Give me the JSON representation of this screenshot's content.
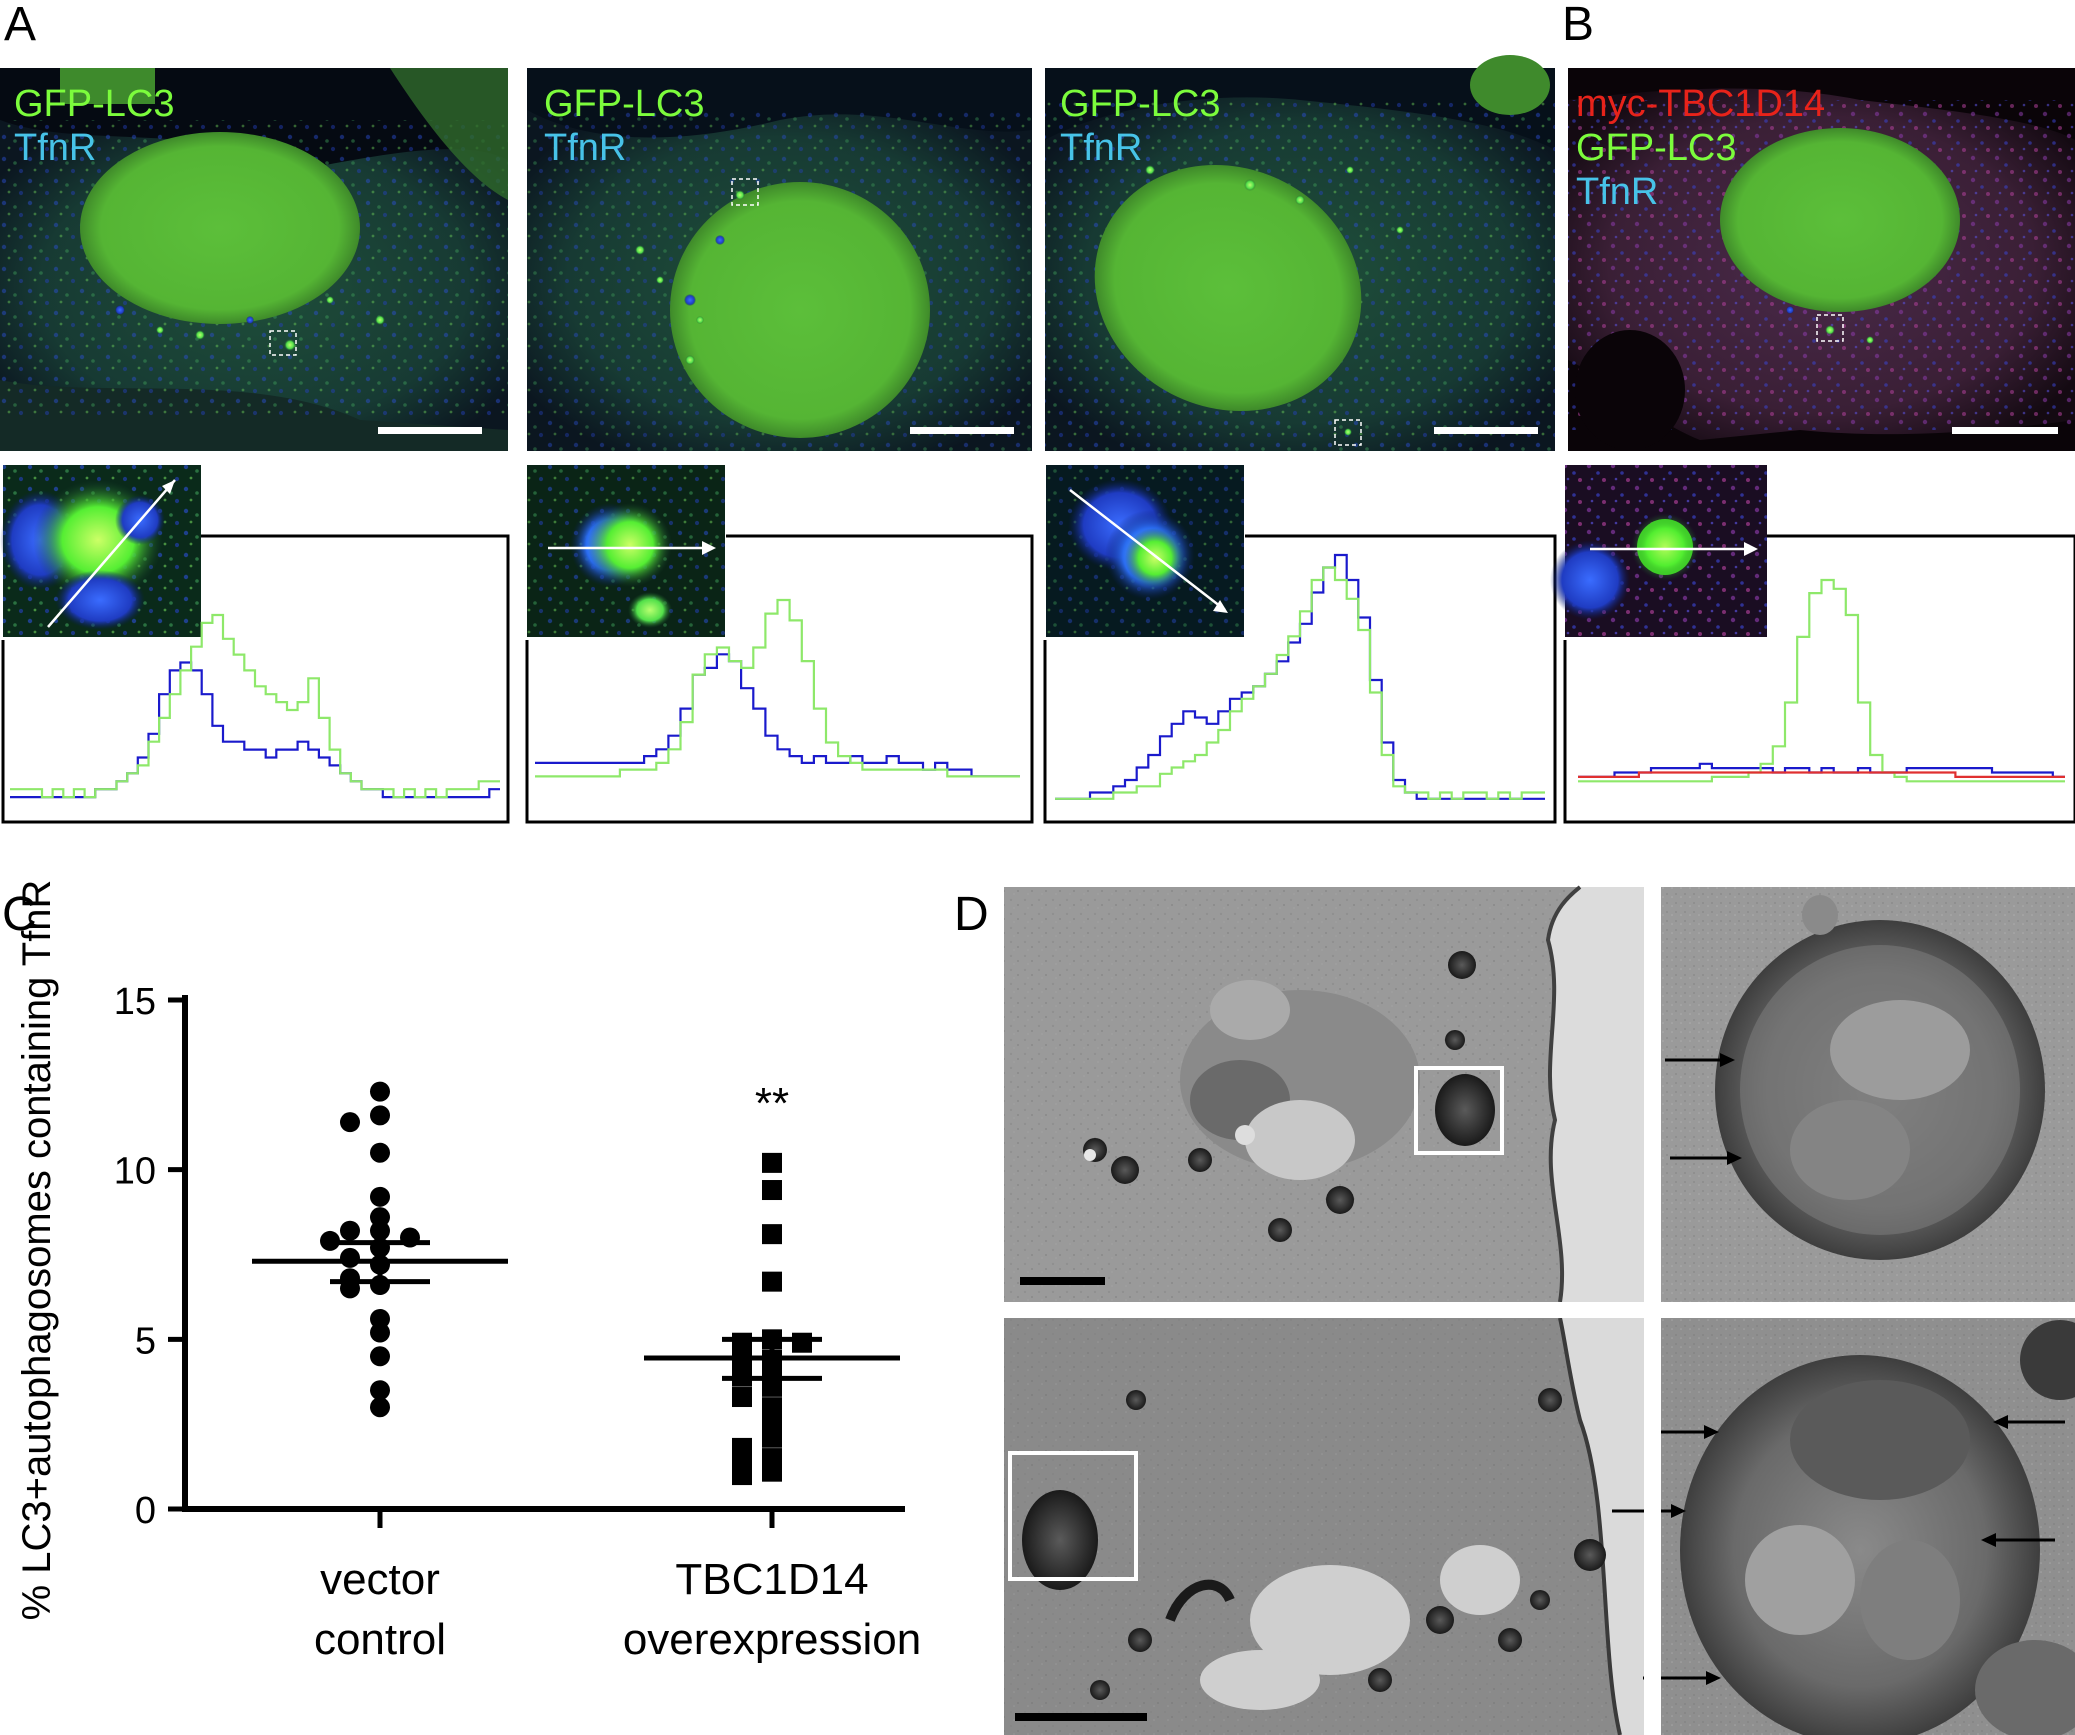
{
  "panels": {
    "A": {
      "letter": "A",
      "images": [
        {
          "labels": [
            "GFP-LC3",
            "TfnR"
          ]
        },
        {
          "labels": [
            "GFP-LC3",
            "TfnR"
          ]
        },
        {
          "labels": [
            "GFP-LC3",
            "TfnR"
          ]
        }
      ]
    },
    "B": {
      "letter": "B",
      "labels": [
        "myc-TBC1D14",
        "GFP-LC3",
        "TfnR"
      ]
    },
    "C": {
      "letter": "C"
    },
    "D": {
      "letter": "D"
    }
  },
  "colors": {
    "gfp": "#7CFC3C",
    "tfnr": "#47C3E8",
    "myc": "#E8231A",
    "blue_trace": "#1a1acc",
    "green_trace": "#8ee86a",
    "red_trace": "#e03030"
  },
  "chart_data": [
    {
      "type": "line",
      "panel": "A-1",
      "series": [
        {
          "color": "blue",
          "values": [
            1,
            1,
            1,
            1,
            1,
            1,
            1,
            1,
            2,
            2,
            3,
            4,
            6,
            9,
            14,
            17,
            18,
            17,
            14,
            10,
            8,
            8,
            7,
            7,
            6,
            7,
            7,
            8,
            7,
            6,
            5,
            4,
            3,
            2,
            2,
            1,
            1,
            1,
            1,
            1,
            1,
            1,
            1,
            1,
            1,
            2
          ]
        },
        {
          "color": "green",
          "values": [
            2,
            2,
            2,
            1,
            2,
            1,
            2,
            1,
            2,
            2,
            3,
            4,
            5,
            8,
            11,
            14,
            17,
            20,
            23,
            24,
            21,
            19,
            17,
            15,
            14,
            13,
            12,
            13,
            16,
            11,
            7,
            4,
            3,
            2,
            2,
            2,
            1,
            2,
            1,
            2,
            1,
            2,
            2,
            2,
            3,
            3
          ]
        }
      ]
    },
    {
      "type": "line",
      "panel": "A-2",
      "series": [
        {
          "color": "blue",
          "values": [
            4,
            4,
            4,
            4,
            4,
            4,
            4,
            4,
            4,
            5,
            6,
            8,
            12,
            17,
            18,
            20,
            19,
            15,
            12,
            8,
            6,
            5,
            4,
            5,
            4,
            4,
            5,
            4,
            4,
            5,
            4,
            4,
            3,
            4,
            3,
            3,
            2,
            2,
            2,
            2
          ]
        },
        {
          "color": "green",
          "values": [
            2,
            2,
            2,
            2,
            2,
            2,
            2,
            3,
            3,
            3,
            4,
            6,
            10,
            17,
            20,
            21,
            19,
            18,
            21,
            26,
            28,
            25,
            19,
            12,
            7,
            5,
            4,
            3,
            3,
            3,
            3,
            3,
            3,
            3,
            2,
            2,
            2,
            2,
            2,
            2
          ]
        }
      ]
    },
    {
      "type": "line",
      "panel": "A-3",
      "series": [
        {
          "color": "blue",
          "values": [
            1,
            1,
            1,
            2,
            2,
            3,
            4,
            6,
            8,
            11,
            13,
            15,
            14,
            13,
            15,
            17,
            18,
            19,
            21,
            23,
            26,
            29,
            34,
            38,
            40,
            36,
            30,
            20,
            10,
            4,
            2,
            1,
            1,
            1,
            1,
            1,
            1,
            1,
            1,
            1,
            1,
            1
          ]
        },
        {
          "color": "green",
          "values": [
            1,
            1,
            1,
            1,
            1,
            2,
            2,
            3,
            3,
            5,
            6,
            7,
            8,
            10,
            12,
            15,
            17,
            19,
            21,
            24,
            27,
            31,
            36,
            38,
            36,
            33,
            28,
            18,
            8,
            3,
            2,
            2,
            1,
            2,
            1,
            2,
            2,
            1,
            2,
            1,
            2,
            2
          ]
        }
      ]
    },
    {
      "type": "line",
      "panel": "B",
      "series": [
        {
          "color": "blue",
          "values": [
            3,
            3,
            3,
            4,
            4,
            4,
            5,
            5,
            5,
            5,
            6,
            5,
            5,
            5,
            5,
            5,
            4,
            5,
            5,
            4,
            5,
            4,
            4,
            5,
            4,
            4,
            4,
            5,
            5,
            5,
            5,
            5,
            5,
            5,
            4,
            4,
            4,
            4,
            4,
            3
          ]
        },
        {
          "color": "green",
          "values": [
            2,
            2,
            2,
            2,
            2,
            2,
            2,
            2,
            2,
            2,
            2,
            3,
            3,
            3,
            4,
            6,
            10,
            20,
            35,
            45,
            48,
            46,
            40,
            20,
            8,
            4,
            3,
            2,
            2,
            2,
            2,
            2,
            2,
            2,
            2,
            2,
            2,
            2,
            2,
            2
          ]
        },
        {
          "color": "red",
          "values": [
            3,
            3,
            3,
            3,
            3,
            4,
            4,
            4,
            4,
            4,
            4,
            4,
            4,
            4,
            4,
            4,
            4,
            4,
            4,
            4,
            4,
            4,
            4,
            4,
            4,
            4,
            4,
            4,
            4,
            4,
            4,
            3,
            3,
            3,
            3,
            3,
            3,
            3,
            3,
            3
          ]
        }
      ]
    },
    {
      "type": "scatter",
      "panel": "C",
      "ylabel": "% LC3+autophagosomes containing TfnR",
      "ylim": [
        0,
        15
      ],
      "yticks": [
        "0",
        "5",
        "10",
        "15"
      ],
      "categories": [
        "vector control",
        "TBC1D14 overexpression"
      ],
      "significance": "**",
      "series": [
        {
          "category": "vector control",
          "marker": "circle",
          "mean": 7.3,
          "sem_low": 6.7,
          "sem_high": 7.85,
          "values": [
            12.3,
            11.6,
            11.4,
            10.5,
            9.2,
            8.6,
            8.2,
            8.2,
            8.0,
            7.9,
            7.7,
            7.4,
            7.2,
            6.8,
            6.6,
            6.5,
            5.6,
            5.2,
            4.5,
            3.5,
            3.0
          ]
        },
        {
          "category": "TBC1D14 overexpression",
          "marker": "square",
          "mean": 4.45,
          "sem_low": 3.85,
          "sem_high": 5.0,
          "values": [
            10.2,
            9.4,
            8.1,
            6.7,
            5.0,
            4.9,
            4.9,
            4.4,
            4.4,
            4.2,
            3.9,
            3.6,
            3.3,
            3.0,
            2.5,
            2.1,
            1.8,
            1.5,
            1.3,
            1.1,
            1.0
          ]
        }
      ]
    }
  ]
}
